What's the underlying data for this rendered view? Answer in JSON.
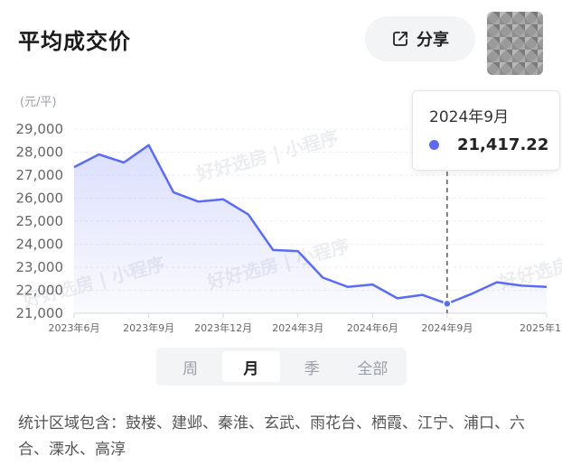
{
  "header": {
    "title": "平均成交价",
    "share_label": "分享"
  },
  "tooltip": {
    "date": "2024年9月",
    "value": "21,417.22"
  },
  "period_tabs": [
    "周",
    "月",
    "季",
    "全部"
  ],
  "active_tab": "月",
  "region_text": "统计区域包含：鼓楼、建邺、秦淮、玄武、雨花台、栖霞、江宁、浦口、六合、溧水、高淳",
  "watermark": "好好选房 | 小程序",
  "colors": {
    "line": "#5b6cf4",
    "dot": "#5b6cf4"
  },
  "chart_data": {
    "type": "area",
    "unit_label": "(元/平)",
    "x": [
      "2023年6月",
      "2023年7月",
      "2023年8月",
      "2023年9月",
      "2023年10月",
      "2023年11月",
      "2023年12月",
      "2024年1月",
      "2024年2月",
      "2024年3月",
      "2024年4月",
      "2024年5月",
      "2024年6月",
      "2024年7月",
      "2024年8月",
      "2024年9月",
      "2024年10月",
      "2024年11月",
      "2024年12月",
      "2025年1月"
    ],
    "series": [
      {
        "values": [
          27350,
          27900,
          27550,
          28300,
          26250,
          25850,
          25950,
          25300,
          23750,
          23700,
          22550,
          22150,
          22250,
          21650,
          21800,
          21417.22,
          21850,
          22350,
          22200,
          22150
        ]
      }
    ],
    "x_tick_labels": [
      "2023年6月",
      "2023年9月",
      "2023年12月",
      "2024年3月",
      "2024年6月",
      "2024年9月",
      "2025年1"
    ],
    "x_tick_indices": [
      0,
      3,
      6,
      9,
      12,
      15,
      19
    ],
    "y_ticks": [
      21000,
      22000,
      23000,
      24000,
      25000,
      26000,
      27000,
      28000,
      29000
    ],
    "y_tick_labels": [
      "21,000",
      "22,000",
      "23,000",
      "24,000",
      "25,000",
      "26,000",
      "27,000",
      "28,000",
      "29,000"
    ],
    "ylim": [
      21000,
      29000
    ],
    "highlight_index": 15
  }
}
